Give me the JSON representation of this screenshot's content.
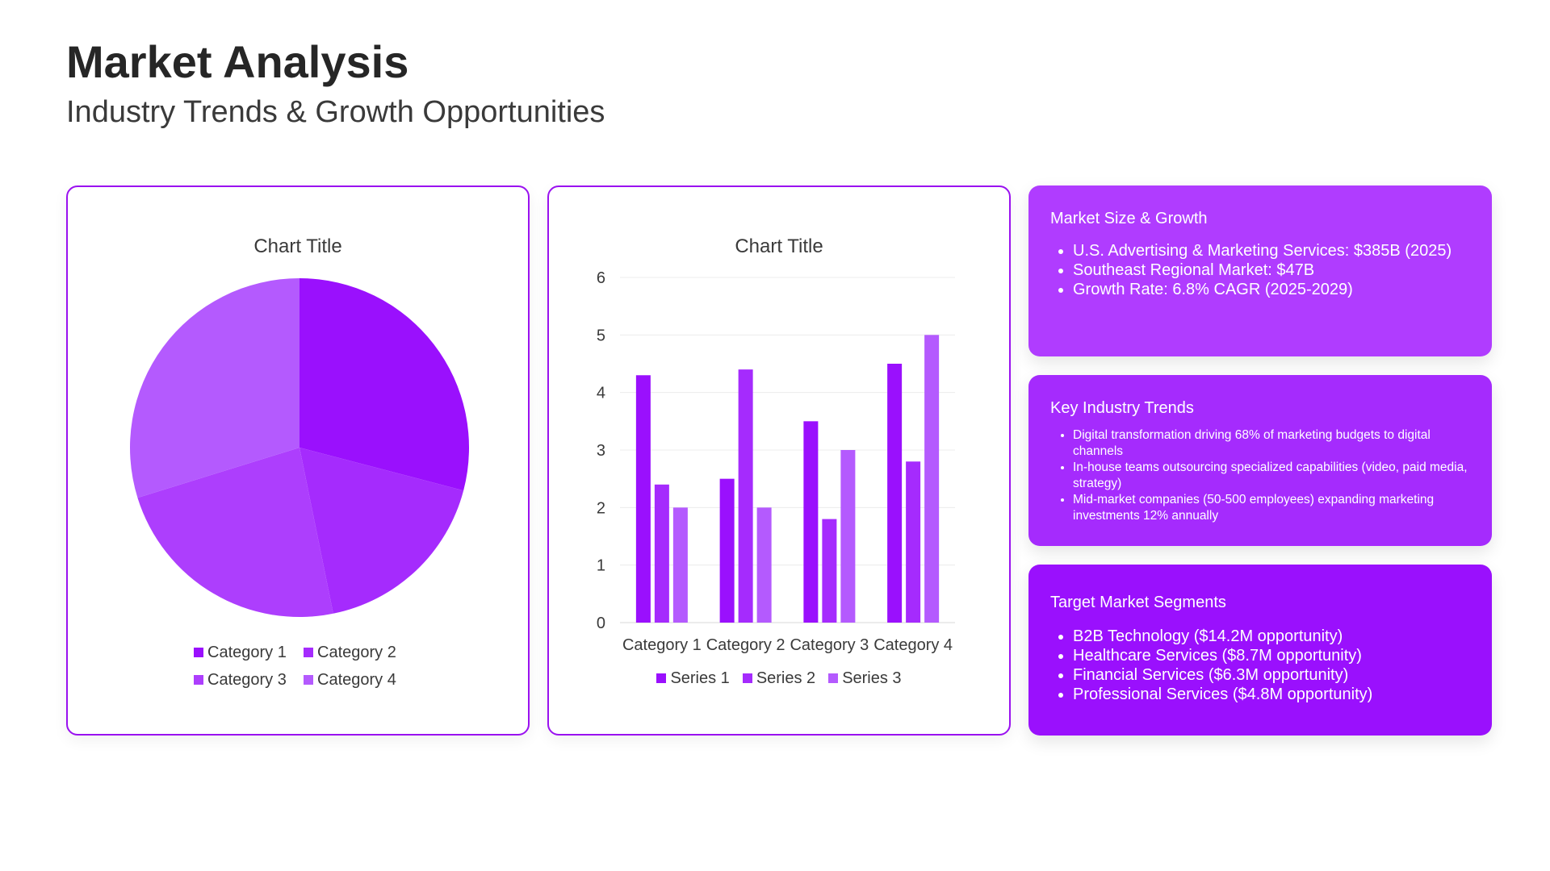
{
  "header": {
    "title": "Market Analysis",
    "subtitle": "Industry Trends & Growth Opportunities"
  },
  "colors": {
    "accent": "#9a11f0",
    "category_1": "#9a10fd",
    "category_2": "#a52bfd",
    "category_3": "#ad3efd",
    "category_4": "#b45afe",
    "series_1": "#9a10fd",
    "series_2": "#a52bfd",
    "series_3": "#b45afe"
  },
  "chart_data": [
    {
      "type": "pie",
      "title": "Chart Title",
      "categories": [
        "Category 1",
        "Category 2",
        "Category 3",
        "Category 4"
      ],
      "values": [
        8.2,
        5.0,
        6.6,
        8.4
      ],
      "legend": "bottom"
    },
    {
      "type": "bar",
      "title": "Chart Title",
      "categories": [
        "Category 1",
        "Category 2",
        "Category 3",
        "Category 4"
      ],
      "series": [
        {
          "name": "Series 1",
          "values": [
            4.3,
            2.5,
            3.5,
            4.5
          ]
        },
        {
          "name": "Series 2",
          "values": [
            2.4,
            4.4,
            1.8,
            2.8
          ]
        },
        {
          "name": "Series 3",
          "values": [
            2,
            2,
            3,
            5
          ]
        }
      ],
      "ylim": [
        0,
        6
      ],
      "yticks": [
        "0",
        "1",
        "2",
        "3",
        "4",
        "5",
        "6"
      ],
      "grid": true,
      "legend": "bottom"
    }
  ],
  "cards": {
    "market": {
      "title": "Market Size & Growth",
      "items": [
        "U.S. Advertising & Marketing Services: $385B (2025)",
        "Southeast Regional Market: $47B",
        "Growth Rate: 6.8% CAGR (2025-2029)"
      ]
    },
    "trends": {
      "title": "Key Industry Trends",
      "items": [
        "Digital transformation driving 68% of marketing budgets to digital channels",
        "In-house teams outsourcing specialized capabilities (video, paid media, strategy)",
        "Mid-market companies (50-500 employees) expanding marketing investments 12% annually"
      ]
    },
    "segments": {
      "title": "Target Market Segments",
      "items": [
        "B2B Technology ($14.2M opportunity)",
        "Healthcare Services ($8.7M opportunity)",
        "Financial Services ($6.3M opportunity)",
        "Professional Services ($4.8M opportunity)"
      ]
    }
  }
}
